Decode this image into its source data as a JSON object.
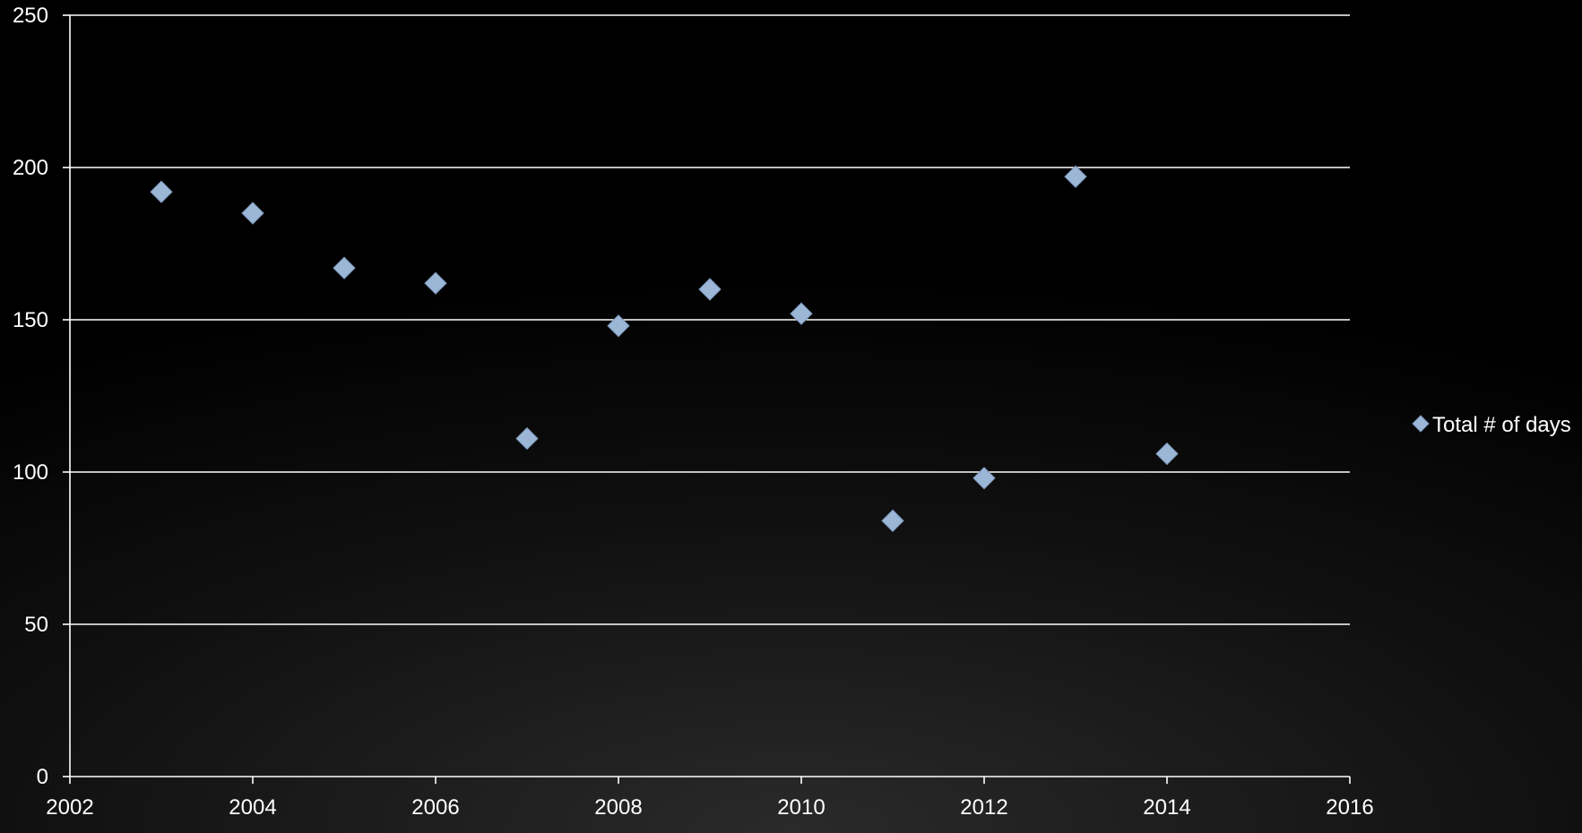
{
  "colors": {
    "background": "#000000",
    "gridline": "#ffffff",
    "axis": "#ffffff",
    "text": "#ffffff",
    "marker": "#9cb6d6",
    "marker_edge": "#7a95b8"
  },
  "chart_data": {
    "type": "scatter",
    "title": "",
    "xlabel": "",
    "ylabel": "",
    "xlim": [
      2002,
      2016
    ],
    "ylim": [
      0,
      250
    ],
    "x_ticks": [
      2002,
      2004,
      2006,
      2008,
      2010,
      2012,
      2014,
      2016
    ],
    "y_ticks": [
      0,
      50,
      100,
      150,
      200,
      250
    ],
    "grid": "horizontal",
    "legend_position": "right",
    "marker": "diamond",
    "series": [
      {
        "name": "Total # of days",
        "points": [
          {
            "x": 2003,
            "y": 192
          },
          {
            "x": 2004,
            "y": 185
          },
          {
            "x": 2005,
            "y": 167
          },
          {
            "x": 2006,
            "y": 162
          },
          {
            "x": 2007,
            "y": 111
          },
          {
            "x": 2008,
            "y": 148
          },
          {
            "x": 2009,
            "y": 160
          },
          {
            "x": 2010,
            "y": 152
          },
          {
            "x": 2011,
            "y": 84
          },
          {
            "x": 2012,
            "y": 98
          },
          {
            "x": 2013,
            "y": 197
          },
          {
            "x": 2014,
            "y": 106
          }
        ]
      }
    ]
  }
}
